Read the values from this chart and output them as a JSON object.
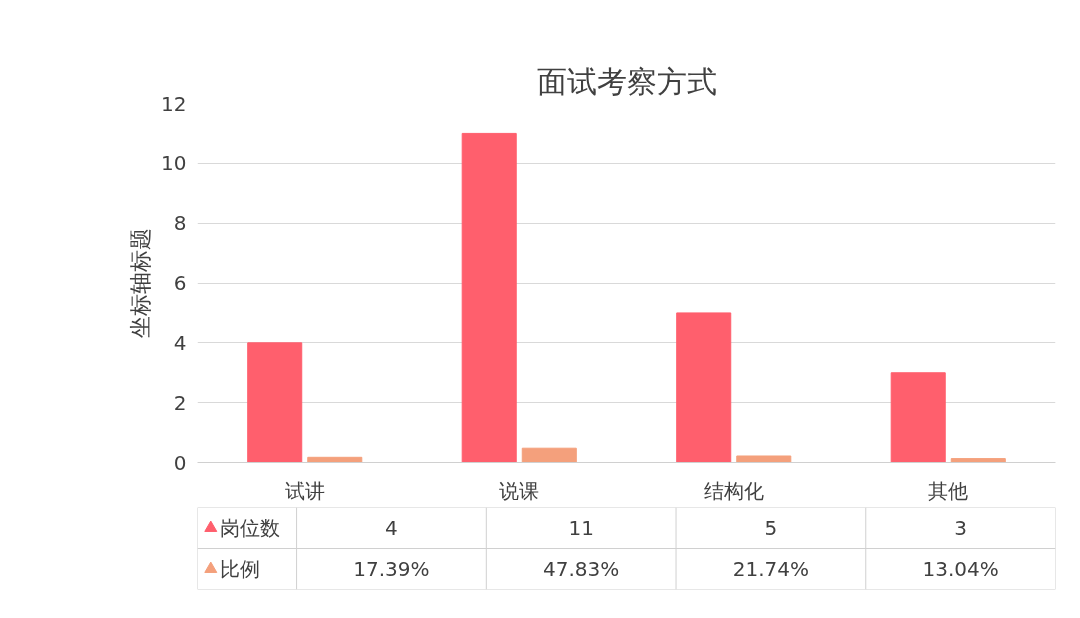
{
  "chart_data": {
    "type": "bar",
    "title": "面试考察方式",
    "ylabel": "坐标轴标题",
    "categories": [
      "试讲",
      "说课",
      "结构化",
      "其他"
    ],
    "series": [
      {
        "name": "岗位数",
        "color": "#ff5f6d",
        "values": [
          4,
          11,
          5,
          3
        ],
        "value_labels": [
          "4",
          "11",
          "5",
          "3"
        ]
      },
      {
        "name": "比例",
        "color": "#f4a07c",
        "values": [
          0.1739,
          0.4783,
          0.2174,
          0.1304
        ],
        "value_labels": [
          "17.39%",
          "47.83%",
          "21.74%",
          "13.04%"
        ]
      }
    ],
    "ylim": [
      0,
      12
    ],
    "yticks": [
      0,
      2,
      4,
      6,
      8,
      10,
      12
    ],
    "grid": "y",
    "legend": "bottom left"
  }
}
